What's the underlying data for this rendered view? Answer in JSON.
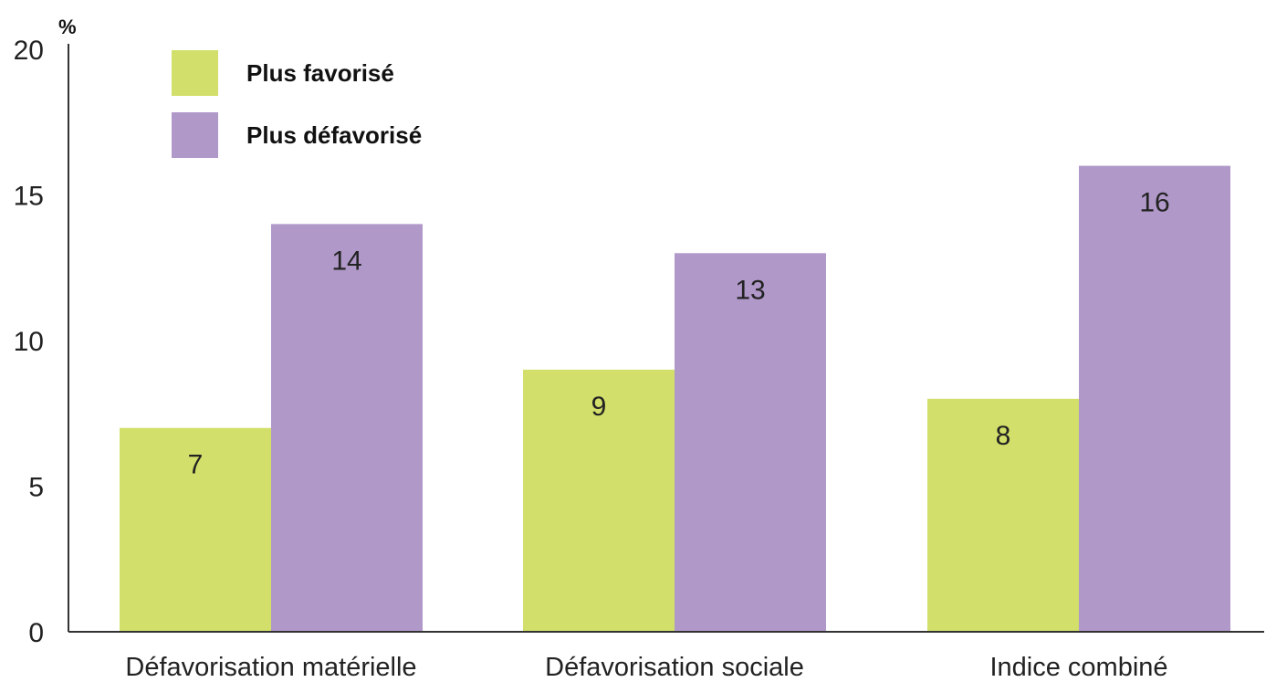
{
  "chart_data": {
    "type": "bar",
    "unit_label": "%",
    "categories": [
      "Défavorisation matérielle",
      "Défavorisation sociale",
      "Indice combiné"
    ],
    "series": [
      {
        "name": "Plus favorisé",
        "color": "#d2df6a",
        "values": [
          7,
          9,
          8
        ]
      },
      {
        "name": "Plus défavorisé",
        "color": "#b098c9",
        "values": [
          14,
          13,
          16
        ]
      }
    ],
    "yticks": [
      0,
      5,
      10,
      15,
      20
    ],
    "ylim": [
      0,
      20
    ],
    "grid": false,
    "legend_position": "top-left",
    "axis_color": "#333333"
  }
}
